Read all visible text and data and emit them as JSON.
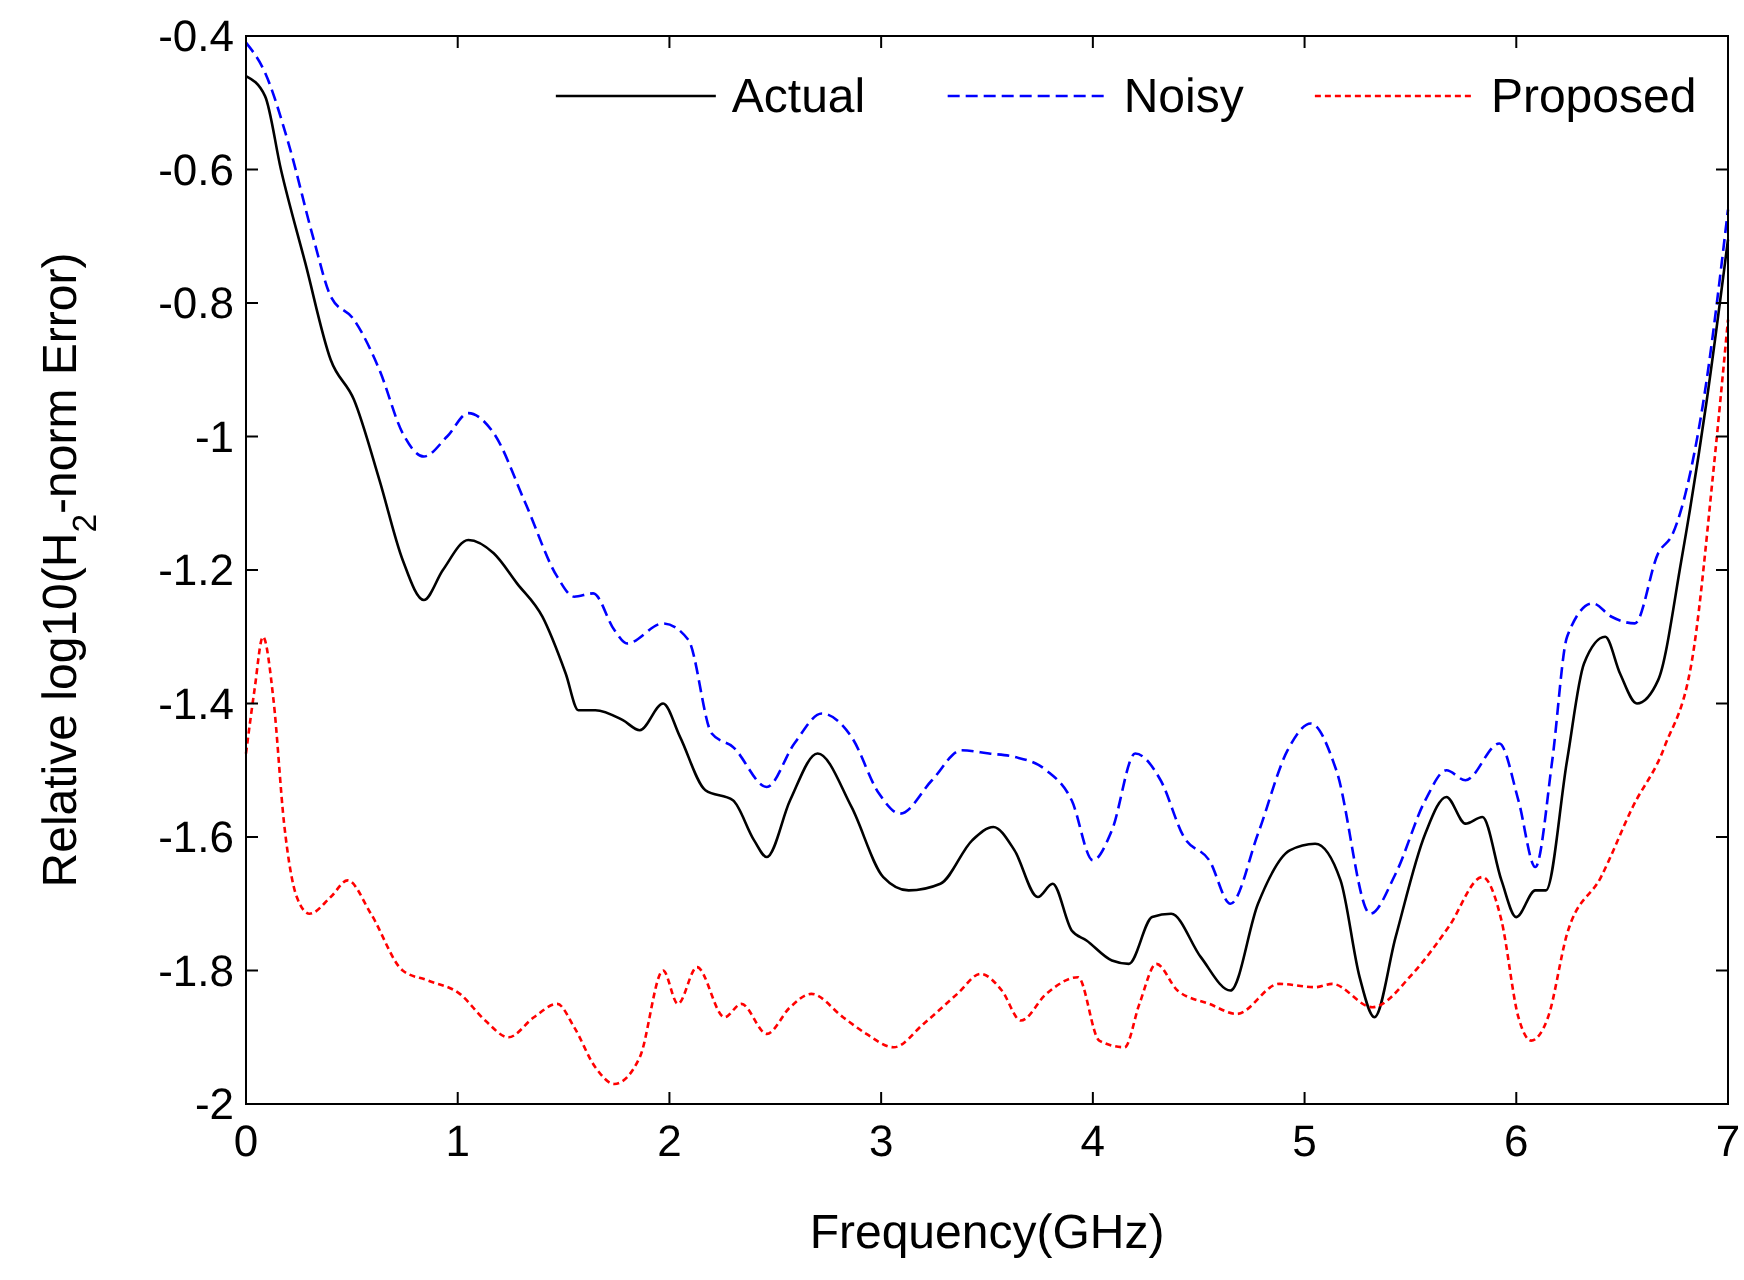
{
  "chart_data": {
    "type": "line",
    "xlabel": "Frequency(GHz)",
    "ylabel": "Relative log10(H$_{2}$-norm Error)",
    "xlim": [
      0,
      7
    ],
    "xticks": [
      0,
      1,
      2,
      3,
      4,
      5,
      6,
      7
    ],
    "ylim": [
      -2,
      -0.4
    ],
    "yticks": [
      -2,
      -1.8,
      -1.6,
      -1.4,
      -1.2,
      -1,
      -0.8,
      -0.6,
      -0.4
    ],
    "grid": false,
    "legend": "top right",
    "series": [
      {
        "name": "Actual",
        "color": "#000000",
        "line_style": "solid",
        "x": [
          0,
          0.09,
          0.165,
          0.28,
          0.4,
          0.51,
          0.63,
          0.74,
          0.84,
          0.93,
          1.05,
          1.17,
          1.28,
          1.4,
          1.51,
          1.57,
          1.65,
          1.78,
          1.86,
          1.97,
          2.05,
          2.17,
          2.3,
          2.4,
          2.46,
          2.57,
          2.7,
          2.86,
          3.01,
          3.13,
          3.28,
          3.43,
          3.53,
          3.63,
          3.74,
          3.81,
          3.9,
          3.97,
          4.09,
          4.17,
          4.28,
          4.37,
          4.51,
          4.65,
          4.78,
          4.93,
          5.05,
          5.17,
          5.26,
          5.33,
          5.43,
          5.57,
          5.67,
          5.76,
          5.84,
          5.93,
          6,
          6.09,
          6.14,
          6.24,
          6.32,
          6.42,
          6.49,
          6.57,
          6.67,
          6.78,
          6.9,
          7
        ],
        "values": [
          -0.46,
          -0.49,
          -0.6,
          -0.74,
          -0.885,
          -0.945,
          -1.065,
          -1.185,
          -1.245,
          -1.2,
          -1.155,
          -1.175,
          -1.22,
          -1.27,
          -1.355,
          -1.41,
          -1.41,
          -1.425,
          -1.44,
          -1.4,
          -1.45,
          -1.53,
          -1.545,
          -1.605,
          -1.63,
          -1.545,
          -1.475,
          -1.555,
          -1.66,
          -1.68,
          -1.67,
          -1.605,
          -1.585,
          -1.62,
          -1.69,
          -1.67,
          -1.74,
          -1.755,
          -1.785,
          -1.79,
          -1.72,
          -1.715,
          -1.78,
          -1.83,
          -1.7,
          -1.62,
          -1.61,
          -1.665,
          -1.81,
          -1.87,
          -1.75,
          -1.595,
          -1.54,
          -1.58,
          -1.57,
          -1.665,
          -1.72,
          -1.68,
          -1.68,
          -1.485,
          -1.34,
          -1.3,
          -1.355,
          -1.4,
          -1.365,
          -1.185,
          -0.945,
          -0.705
        ]
      },
      {
        "name": "Noisy",
        "color": "#0000ff",
        "line_style": "dashed",
        "x": [
          0,
          0.09,
          0.2,
          0.32,
          0.4,
          0.51,
          0.63,
          0.74,
          0.84,
          0.95,
          1.05,
          1.17,
          1.32,
          1.47,
          1.55,
          1.64,
          1.74,
          1.8,
          1.97,
          2.09,
          2.2,
          2.3,
          2.46,
          2.59,
          2.72,
          2.86,
          2.99,
          3.09,
          3.24,
          3.38,
          3.51,
          3.63,
          3.78,
          3.9,
          4,
          4.09,
          4.2,
          4.32,
          4.43,
          4.55,
          4.65,
          4.78,
          4.92,
          5.03,
          5.15,
          5.31,
          5.43,
          5.57,
          5.67,
          5.76,
          5.92,
          6.01,
          6.09,
          6.17,
          6.24,
          6.36,
          6.45,
          6.56,
          6.67,
          6.74,
          6.88,
          7
        ],
        "values": [
          -0.41,
          -0.455,
          -0.56,
          -0.705,
          -0.79,
          -0.825,
          -0.9,
          -0.995,
          -1.03,
          -1,
          -0.965,
          -0.995,
          -1.1,
          -1.21,
          -1.24,
          -1.235,
          -1.29,
          -1.31,
          -1.28,
          -1.305,
          -1.445,
          -1.465,
          -1.525,
          -1.46,
          -1.415,
          -1.45,
          -1.535,
          -1.565,
          -1.515,
          -1.47,
          -1.475,
          -1.48,
          -1.5,
          -1.545,
          -1.635,
          -1.59,
          -1.475,
          -1.515,
          -1.6,
          -1.635,
          -1.7,
          -1.595,
          -1.47,
          -1.43,
          -1.5,
          -1.715,
          -1.655,
          -1.545,
          -1.5,
          -1.515,
          -1.46,
          -1.545,
          -1.645,
          -1.485,
          -1.3,
          -1.25,
          -1.27,
          -1.28,
          -1.175,
          -1.145,
          -0.955,
          -0.66
        ]
      },
      {
        "name": "Proposed",
        "color": "#ff0000",
        "line_style": "dotted",
        "x": [
          0,
          0.04,
          0.08,
          0.13,
          0.18,
          0.24,
          0.3,
          0.4,
          0.48,
          0.59,
          0.74,
          0.86,
          1.01,
          1.13,
          1.24,
          1.36,
          1.47,
          1.55,
          1.65,
          1.74,
          1.86,
          1.97,
          2.04,
          2.13,
          2.26,
          2.34,
          2.46,
          2.57,
          2.67,
          2.82,
          2.93,
          3.06,
          3.2,
          3.36,
          3.47,
          3.57,
          3.66,
          3.78,
          3.93,
          4.03,
          4.15,
          4.22,
          4.3,
          4.4,
          4.55,
          4.68,
          4.88,
          5.05,
          5.13,
          5.32,
          5.51,
          5.68,
          5.84,
          5.93,
          6.01,
          6.07,
          6.15,
          6.24,
          6.4,
          6.55,
          6.7,
          6.84,
          6.93,
          7
        ],
        "values": [
          -1.475,
          -1.38,
          -1.3,
          -1.395,
          -1.58,
          -1.69,
          -1.715,
          -1.69,
          -1.665,
          -1.715,
          -1.8,
          -1.815,
          -1.835,
          -1.875,
          -1.9,
          -1.87,
          -1.85,
          -1.885,
          -1.945,
          -1.97,
          -1.93,
          -1.8,
          -1.85,
          -1.795,
          -1.87,
          -1.85,
          -1.895,
          -1.855,
          -1.835,
          -1.87,
          -1.895,
          -1.915,
          -1.88,
          -1.835,
          -1.805,
          -1.83,
          -1.875,
          -1.835,
          -1.81,
          -1.905,
          -1.915,
          -1.85,
          -1.79,
          -1.83,
          -1.85,
          -1.865,
          -1.82,
          -1.825,
          -1.82,
          -1.855,
          -1.805,
          -1.735,
          -1.66,
          -1.725,
          -1.87,
          -1.905,
          -1.87,
          -1.745,
          -1.66,
          -1.555,
          -1.465,
          -1.315,
          -1.055,
          -0.825
        ]
      }
    ]
  }
}
